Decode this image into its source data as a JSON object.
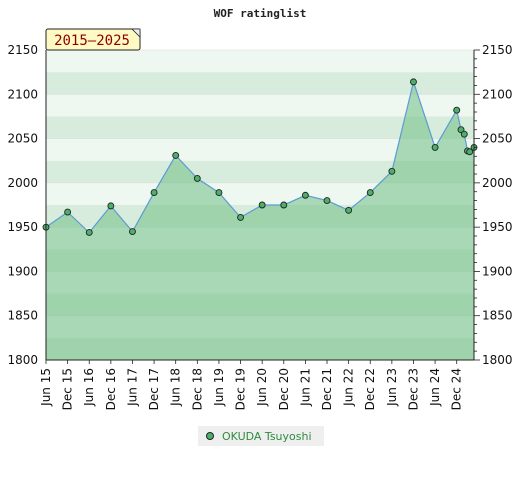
{
  "chart_data": {
    "type": "area",
    "title": "WOF ratinglist",
    "period": "2015–2025",
    "ylim": [
      1800,
      2150
    ],
    "yticks": [
      1800,
      1850,
      1900,
      1950,
      2000,
      2050,
      2100,
      2150
    ],
    "xlabels": [
      "Jun 15",
      "Dec 15",
      "Jun 16",
      "Dec 16",
      "Jun 17",
      "Dec 17",
      "Jun 18",
      "Dec 18",
      "Jun 19",
      "Dec 19",
      "Jun 20",
      "Dec 20",
      "Jun 21",
      "Dec 21",
      "Jun 22",
      "Dec 22",
      "Jun 23",
      "Dec 23",
      "Jun 24",
      "Dec 24"
    ],
    "x_range": [
      0,
      19.8
    ],
    "grid": true,
    "legend_position": "bottom",
    "colors": {
      "fill": "#6fbf85",
      "line": "#5b9bd5",
      "marker": "#4caf6a"
    },
    "series": [
      {
        "name": "OKUDA Tsuyoshi",
        "x": [
          0,
          1,
          2,
          3,
          4,
          5,
          6,
          7,
          8,
          9,
          10,
          11,
          12,
          13,
          14,
          15,
          16,
          17,
          18,
          19,
          19.2,
          19.35,
          19.5,
          19.6,
          19.8
        ],
        "y": [
          1950,
          1967,
          1944,
          1974,
          1945,
          1989,
          2031,
          2005,
          1989,
          1961,
          1975,
          1975,
          1986,
          1980,
          1969,
          1989,
          2013,
          2114,
          2040,
          2082,
          2060,
          2055,
          2036,
          2035,
          2040
        ]
      }
    ]
  }
}
